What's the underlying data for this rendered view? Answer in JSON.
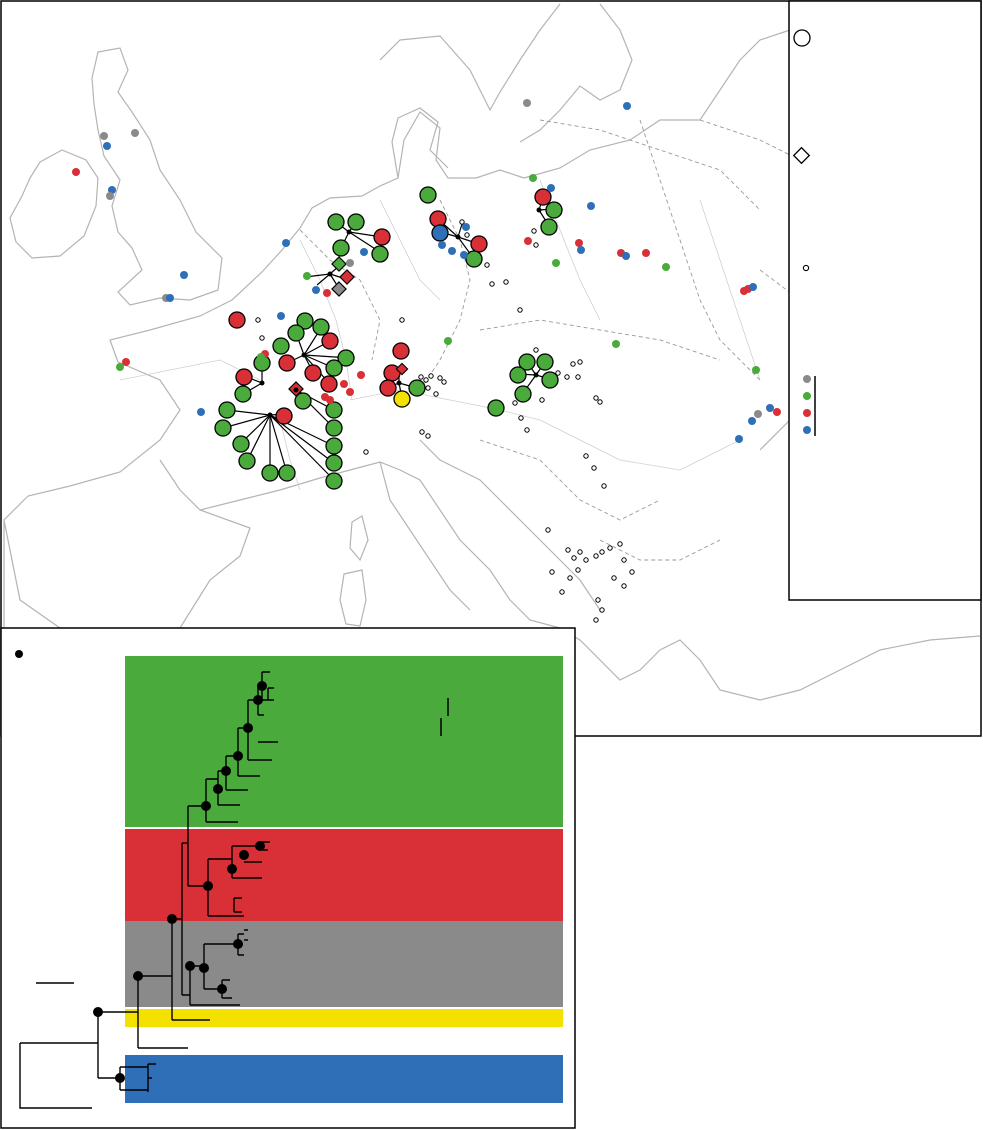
{
  "colors": {
    "clade_a": "#4aaa3c",
    "clade_b": "#d93037",
    "clade_c": "#8a8a8a",
    "clade_d": "#f5e100",
    "clade_e": "#2e6fb8",
    "outline": "#000000",
    "coastline": "#b4b4b4"
  },
  "legend": {
    "symbols": [
      {
        "shape": "large-circle"
      },
      {
        "shape": "diamond"
      },
      {
        "shape": "small-open-circle"
      }
    ],
    "color_keys": [
      "clade_c",
      "clade_a",
      "clade_b",
      "clade_e"
    ]
  },
  "tree_panel": {
    "node_marker": "filled-circle",
    "clade_order": [
      "clade_a",
      "clade_b",
      "clade_c",
      "clade_d",
      "clade_e"
    ]
  }
}
